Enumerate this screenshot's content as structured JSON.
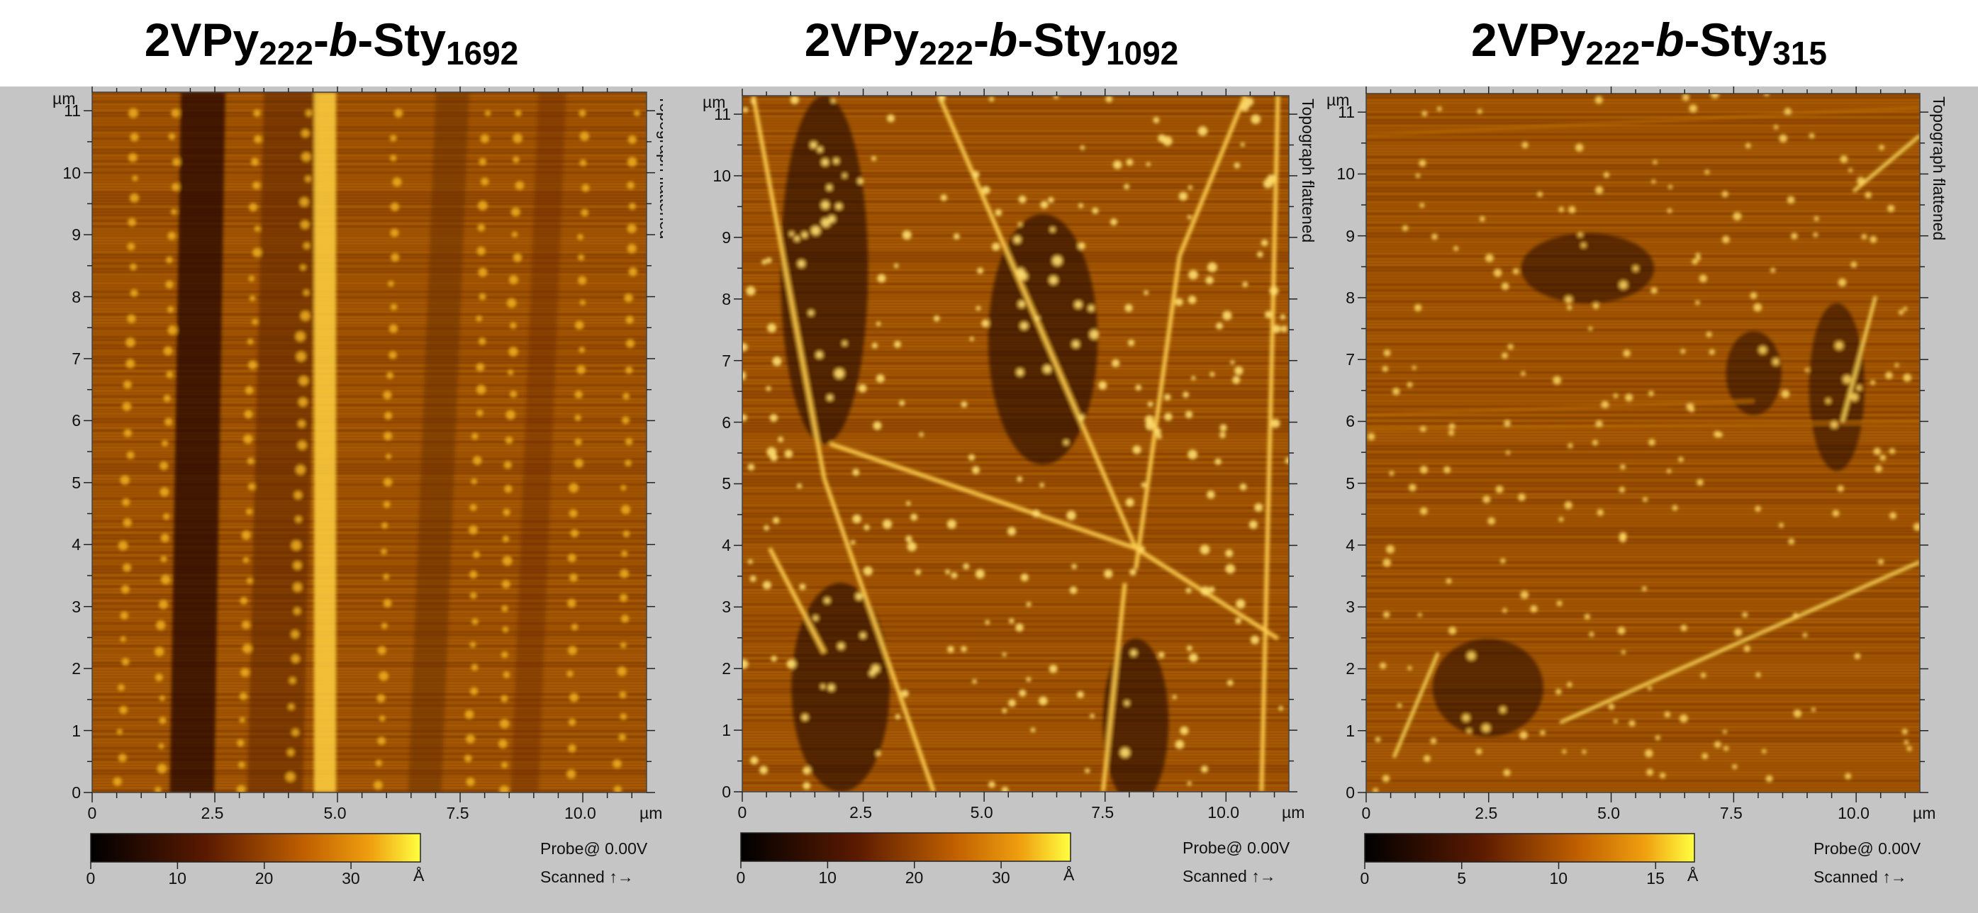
{
  "panels": [
    {
      "title_main": "2VPy",
      "title_sub1": "222",
      "title_dash1": "-",
      "title_italic": "b",
      "title_dash2": "-Sty",
      "title_sub2": "1692",
      "y_ticks": [
        "11",
        "10",
        "9",
        "8",
        "7",
        "6",
        "5",
        "4",
        "3",
        "2",
        "1",
        "0"
      ],
      "x_ticks": [
        "0",
        "2.5",
        "5.0",
        "7.5",
        "10.0"
      ],
      "unit_y": "µm",
      "unit_x": "µm",
      "side_label": "Topograph flattened",
      "colorbar_ticks": [
        "0",
        "10",
        "20",
        "30"
      ],
      "colorbar_unit": "Å",
      "colorbar_max": 38,
      "probe_text": "Probe@ 0.00V",
      "scanned_text": "Scanned ↑→"
    },
    {
      "title_main": "2VPy",
      "title_sub1": "222",
      "title_dash1": "-",
      "title_italic": "b",
      "title_dash2": "-Sty",
      "title_sub2": "1092",
      "y_ticks": [
        "11",
        "10",
        "9",
        "8",
        "7",
        "6",
        "5",
        "4",
        "3",
        "2",
        "1",
        "0"
      ],
      "x_ticks": [
        "0",
        "2.5",
        "5.0",
        "7.5",
        "10.0"
      ],
      "unit_y": "µm",
      "unit_x": "µm",
      "side_label": "Topograph flattened",
      "colorbar_ticks": [
        "0",
        "10",
        "20",
        "30"
      ],
      "colorbar_unit": "Å",
      "colorbar_max": 38,
      "probe_text": "Probe@ 0.00V",
      "scanned_text": "Scanned ↑→"
    },
    {
      "title_main": "2VPy",
      "title_sub1": "222",
      "title_dash1": "-",
      "title_italic": "b",
      "title_dash2": "-Sty",
      "title_sub2": "315",
      "y_ticks": [
        "11",
        "10",
        "9",
        "8",
        "7",
        "6",
        "5",
        "4",
        "3",
        "2",
        "1",
        "0"
      ],
      "x_ticks": [
        "0",
        "2.5",
        "5.0",
        "7.5",
        "10.0"
      ],
      "unit_y": "µm",
      "unit_x": "µm",
      "side_label": "Topograph flattened",
      "colorbar_ticks": [
        "0",
        "5",
        "10",
        "15"
      ],
      "colorbar_unit": "Å",
      "colorbar_max": 17,
      "probe_text": "Probe@ 0.00V",
      "scanned_text": "Scanned ↑→"
    }
  ],
  "axis_range_um": [
    0,
    11.3
  ],
  "colors": {
    "dark": "#1a0600",
    "mid": "#9a4f00",
    "bright": "#f0b020",
    "highlight": "#ffff60",
    "frame": "#c5c5c5"
  }
}
